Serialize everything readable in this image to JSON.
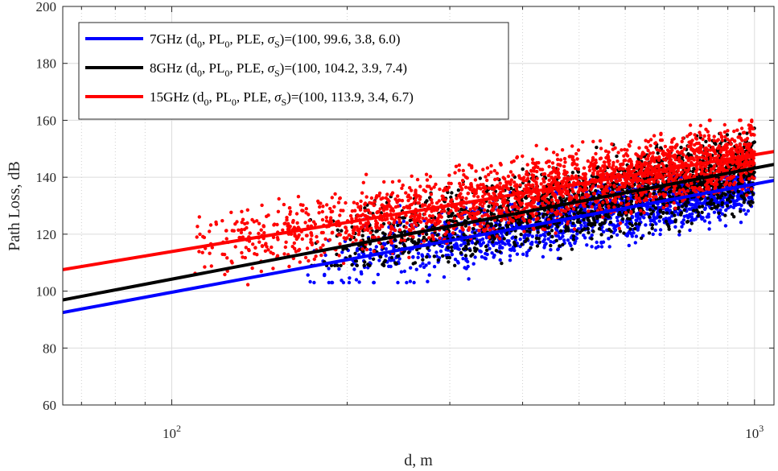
{
  "chart_data": {
    "type": "scatter",
    "title": "",
    "xlabel": "d, m",
    "ylabel": "Path Loss, dB",
    "xscale": "log",
    "xlim": [
      65,
      1080
    ],
    "ylim": [
      60,
      200
    ],
    "x_ticks": [
      {
        "value": 100,
        "base": "10",
        "exp": "2"
      },
      {
        "value": 1000,
        "base": "10",
        "exp": "3"
      }
    ],
    "y_ticks": [
      60,
      80,
      100,
      120,
      140,
      160,
      180,
      200
    ],
    "grid": true,
    "legend_position": "top-left",
    "series": [
      {
        "name": "7GHz",
        "color": "#0000ff",
        "fit": {
          "d0": 100,
          "pl0": 99.6,
          "ple": 3.8,
          "sigma": 6.0
        },
        "legend": {
          "freq": "7GHz (d",
          "sub0": "0",
          "mid1": ", PL",
          "sub1": "0",
          "mid2": ", PLE, ",
          "sigma": "σ",
          "subS": "S",
          "values": ")=(100, 99.6, 3.8, 6.0)"
        },
        "scatter": {
          "x_range": [
            170,
            1000
          ],
          "median_intercept": 99.6,
          "spread_dB": 6.0,
          "min": 103,
          "max": 140
        }
      },
      {
        "name": "8GHz",
        "color": "#000000",
        "fit": {
          "d0": 100,
          "pl0": 104.2,
          "ple": 3.9,
          "sigma": 7.4
        },
        "legend": {
          "freq": "8GHz (d",
          "sub0": "0",
          "mid1": ", PL",
          "sub1": "0",
          "mid2": ", PLE, ",
          "sigma": "σ",
          "subS": "S",
          "values": ")=(100, 104.2, 3.9, 7.4)"
        },
        "scatter": {
          "x_range": [
            170,
            1000
          ],
          "median_intercept": 104.2,
          "spread_dB": 7.4,
          "min": 109,
          "max": 170
        }
      },
      {
        "name": "15GHz",
        "color": "#ff0000",
        "fit": {
          "d0": 100,
          "pl0": 113.9,
          "ple": 3.4,
          "sigma": 6.7
        },
        "legend": {
          "freq": "15GHz (d",
          "sub0": "0",
          "mid1": ", PL",
          "sub1": "0",
          "mid2": ", PLE, ",
          "sigma": "σ",
          "subS": "S",
          "values": ")=(100, 113.9, 3.4, 6.7)"
        },
        "scatter": {
          "x_range": [
            104,
            1000
          ],
          "median_intercept": 113.9,
          "spread_dB": 6.7,
          "min": 99,
          "max": 160
        }
      }
    ]
  }
}
